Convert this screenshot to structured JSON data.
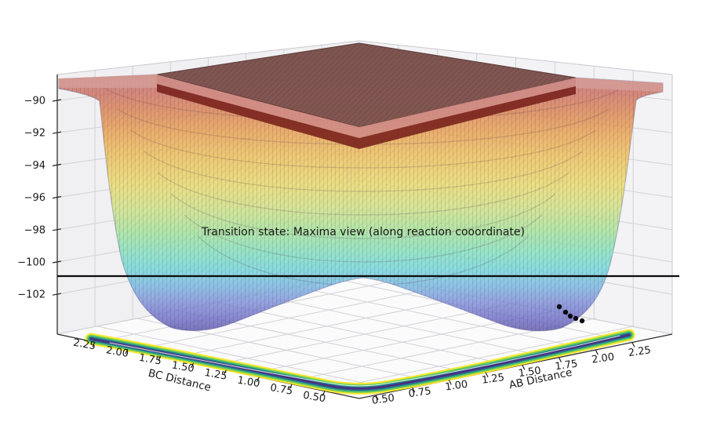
{
  "figure": {
    "title": "Transition state: Maxima view (along reaction cooordinate)",
    "kind": "matplotlib 3D surface figure"
  },
  "chart_data": {
    "type": "surface",
    "title": "Transition state: Maxima view (along reaction cooordinate)",
    "x_axis": {
      "label": "AB Distance",
      "ticks": [
        "0.50",
        "0.75",
        "1.00",
        "1.25",
        "1.50",
        "1.75",
        "2.00",
        "2.25"
      ],
      "range": [
        0.5,
        2.5
      ]
    },
    "y_axis": {
      "label": "BC Distance",
      "ticks": [
        "2.25",
        "2.00",
        "1.75",
        "1.50",
        "1.25",
        "1.00",
        "0.75",
        "0.50"
      ],
      "range": [
        2.5,
        0.5
      ],
      "note": "displayed left-to-right from 2.25 down to 0.50"
    },
    "z_axis": {
      "ticks": [
        "−90",
        "−92",
        "−94",
        "−96",
        "−98",
        "−100",
        "−102"
      ],
      "tick_values": [
        -90,
        -92,
        -94,
        -96,
        -98,
        -100,
        -102
      ],
      "range": [
        -103,
        -89
      ]
    },
    "surface": {
      "description": "LEPS-style potential energy surface: two deep valleys along AB≈0.75 and BC≈0.75 joined at a central saddle (transition state); energies above clip level rendered as a flat dark-red plateau",
      "colormap": "rainbow (red = high energy, blue/indigo = low energy)",
      "alpha": 0.8,
      "plateau_color": "#7e5450",
      "rim_color": "#7a241d"
    },
    "threshold_line": {
      "z": -101,
      "color": "#000000",
      "description": "horizontal black line marking the transition-state (saddle) energy; tangent to the top of the central hump"
    },
    "scatter_points": {
      "count": 5,
      "color": "#000000",
      "location": "inside right valley (AB ≈ 1.9–2.2, BC ≈ 0.75)",
      "description": "black dots along the reaction coordinate"
    },
    "floor_contour": {
      "colormap": "viridis",
      "colors": [
        "#fde725",
        "#6ece58",
        "#21918c",
        "#3b528b",
        "#472d7b"
      ],
      "description": "L-shaped contour projection of the two reaction valleys on the base plane"
    }
  }
}
